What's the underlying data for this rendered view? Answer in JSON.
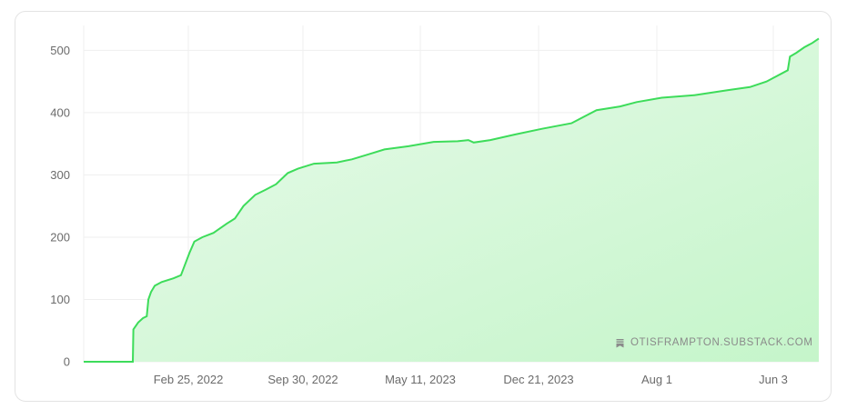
{
  "watermark": {
    "text": "OTISFRAMPTON.SUBSTACK.COM",
    "icon": "bookmark-icon"
  },
  "colors": {
    "line": "#3ddc5a",
    "fill_top": "#c4f5c9",
    "fill_bottom": "#ebfbec",
    "grid": "#efefef",
    "axis_text": "#6b6b6b"
  },
  "chart_data": {
    "type": "area",
    "title": "",
    "xlabel": "",
    "ylabel": "",
    "ylim": [
      0,
      540
    ],
    "yticks": [
      0,
      100,
      200,
      300,
      400,
      500
    ],
    "xtick_labels": [
      "Feb 25, 2022",
      "Sep 30, 2022",
      "May 11, 2023",
      "Dec 21, 2023",
      "Aug 1",
      "Jun 3"
    ],
    "xlim": [
      "2021-10-15",
      "2025-07-22"
    ],
    "grid": true,
    "series": [
      {
        "values": [
          [
            "2021-10-15",
            0
          ],
          [
            "2022-01-15",
            0
          ],
          [
            "2022-01-16",
            52
          ],
          [
            "2022-01-25",
            63
          ],
          [
            "2022-02-03",
            70
          ],
          [
            "2022-02-10",
            73
          ],
          [
            "2022-02-13",
            100
          ],
          [
            "2022-02-18",
            112
          ],
          [
            "2022-02-25",
            122
          ],
          [
            "2022-03-10",
            128
          ],
          [
            "2022-04-01",
            134
          ],
          [
            "2022-04-15",
            139
          ],
          [
            "2022-05-01",
            175
          ],
          [
            "2022-05-10",
            193
          ],
          [
            "2022-05-25",
            200
          ],
          [
            "2022-06-15",
            207
          ],
          [
            "2022-07-10",
            222
          ],
          [
            "2022-07-25",
            230
          ],
          [
            "2022-08-10",
            250
          ],
          [
            "2022-09-01",
            268
          ],
          [
            "2022-09-20",
            276
          ],
          [
            "2022-10-10",
            285
          ],
          [
            "2022-11-01",
            303
          ],
          [
            "2022-11-20",
            310
          ],
          [
            "2022-12-20",
            318
          ],
          [
            "2023-02-01",
            320
          ],
          [
            "2023-03-01",
            325
          ],
          [
            "2023-04-01",
            333
          ],
          [
            "2023-05-01",
            341
          ],
          [
            "2023-06-15",
            346
          ],
          [
            "2023-08-01",
            353
          ],
          [
            "2023-09-15",
            354
          ],
          [
            "2023-10-05",
            356
          ],
          [
            "2023-10-15",
            352
          ],
          [
            "2023-11-15",
            356
          ],
          [
            "2024-01-01",
            365
          ],
          [
            "2024-02-20",
            374
          ],
          [
            "2024-04-15",
            383
          ],
          [
            "2024-06-01",
            404
          ],
          [
            "2024-07-15",
            410
          ],
          [
            "2024-08-15",
            417
          ],
          [
            "2024-10-01",
            424
          ],
          [
            "2024-12-01",
            428
          ],
          [
            "2025-02-01",
            436
          ],
          [
            "2025-03-15",
            441
          ],
          [
            "2025-04-15",
            450
          ],
          [
            "2025-05-25",
            468
          ],
          [
            "2025-05-29",
            490
          ],
          [
            "2025-06-10",
            496
          ],
          [
            "2025-06-25",
            505
          ],
          [
            "2025-07-10",
            512
          ],
          [
            "2025-07-22",
            519
          ]
        ]
      }
    ]
  }
}
